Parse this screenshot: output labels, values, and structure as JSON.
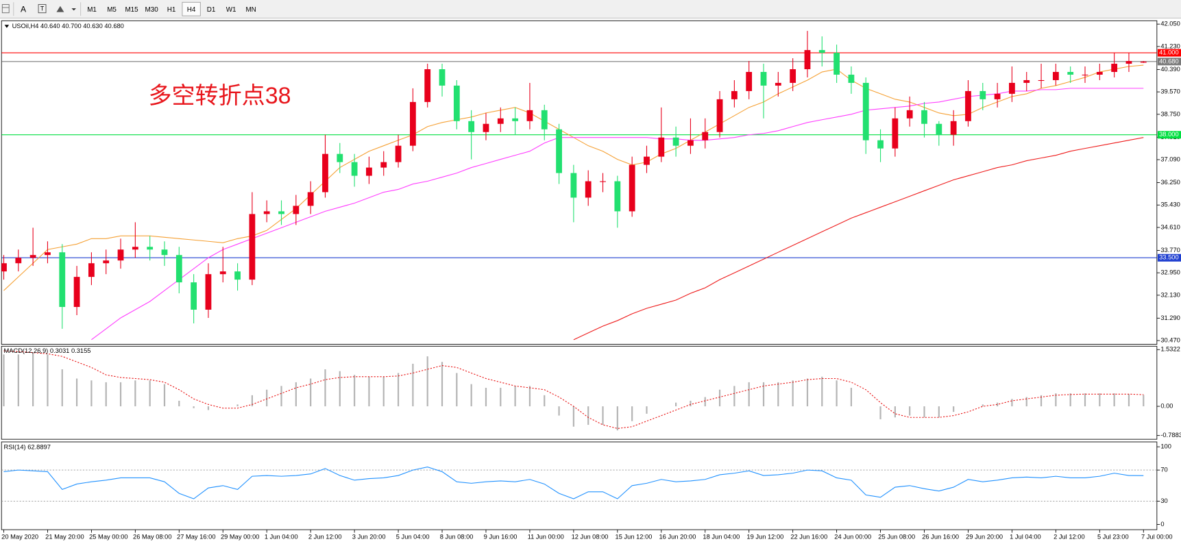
{
  "toolbar": {
    "font_button": "A",
    "timeframes": [
      "M1",
      "M5",
      "M15",
      "M30",
      "H1",
      "H4",
      "D1",
      "W1",
      "MN"
    ],
    "active_timeframe": 5
  },
  "chart_data": [
    {
      "type": "candlestick",
      "title": "USOil,H4  40.640 40.700 40.630 40.680",
      "annotation": "多空转折点38",
      "annotation_color": "#e8161c",
      "open": [
        33.0,
        33.3,
        33.5,
        33.6,
        33.7,
        31.7,
        32.8,
        33.3,
        33.4,
        33.8,
        33.9,
        33.8,
        33.6,
        32.6,
        31.6,
        32.9,
        33.0,
        32.7,
        35.1,
        35.2,
        35.1,
        35.4,
        35.9,
        37.3,
        37.0,
        36.5,
        36.8,
        37.0,
        37.6,
        39.2,
        40.4,
        39.8,
        38.5,
        38.1,
        38.4,
        38.6,
        38.5,
        38.9,
        38.2,
        36.6,
        35.7,
        36.3,
        36.3,
        35.2,
        36.9,
        37.2,
        37.9,
        37.6,
        37.8,
        38.1,
        39.3,
        39.6,
        40.3,
        39.8,
        39.9,
        40.4,
        41.1,
        41.0,
        40.2,
        39.9,
        37.8,
        37.5,
        38.6,
        38.9,
        38.4,
        38.0,
        38.5,
        39.6,
        39.3,
        39.5,
        39.9,
        40.0,
        40.0,
        40.3,
        40.2,
        40.2,
        40.3,
        40.6,
        40.64
      ],
      "high": [
        33.6,
        33.8,
        34.6,
        34.1,
        34.0,
        33.2,
        33.7,
        33.8,
        34.2,
        34.8,
        34.3,
        34.1,
        33.9,
        32.9,
        33.3,
        33.9,
        33.3,
        35.9,
        35.6,
        35.6,
        35.8,
        36.3,
        38.0,
        37.7,
        37.3,
        37.2,
        37.4,
        38.0,
        39.7,
        40.6,
        40.6,
        40.0,
        38.9,
        38.8,
        39.0,
        39.0,
        39.9,
        39.1,
        38.4,
        36.9,
        36.7,
        36.6,
        36.5,
        37.2,
        37.6,
        39.0,
        38.3,
        38.6,
        38.6,
        39.6,
        40.0,
        40.7,
        40.6,
        40.3,
        40.8,
        41.8,
        41.6,
        41.3,
        40.5,
        40.1,
        38.2,
        39.0,
        39.4,
        39.2,
        38.5,
        38.9,
        40.0,
        39.9,
        39.9,
        40.5,
        40.3,
        40.6,
        40.6,
        40.5,
        40.5,
        40.6,
        41.0,
        41.0,
        40.7
      ],
      "low": [
        32.7,
        33.0,
        33.2,
        33.3,
        30.9,
        31.4,
        32.5,
        32.9,
        33.1,
        33.5,
        33.4,
        33.2,
        32.2,
        31.1,
        31.3,
        32.6,
        32.3,
        32.5,
        34.8,
        34.7,
        34.7,
        35.1,
        35.7,
        36.6,
        36.1,
        36.2,
        36.5,
        36.8,
        37.4,
        39.0,
        39.4,
        38.2,
        37.1,
        37.8,
        38.1,
        38.0,
        38.2,
        37.8,
        36.2,
        34.8,
        35.4,
        35.9,
        34.6,
        35.0,
        36.6,
        37.0,
        37.2,
        37.3,
        37.5,
        37.9,
        39.0,
        39.3,
        38.6,
        39.4,
        39.6,
        40.1,
        40.5,
        39.9,
        39.5,
        37.3,
        37.0,
        37.2,
        38.3,
        37.9,
        37.6,
        37.6,
        38.3,
        38.9,
        39.0,
        39.2,
        39.6,
        39.7,
        39.8,
        39.9,
        39.9,
        40.0,
        40.1,
        40.3,
        40.63
      ],
      "close": [
        33.3,
        33.5,
        33.6,
        33.7,
        31.7,
        32.8,
        33.3,
        33.4,
        33.8,
        33.9,
        33.8,
        33.6,
        32.6,
        31.6,
        32.9,
        33.0,
        32.7,
        35.1,
        35.2,
        35.1,
        35.4,
        35.9,
        37.3,
        37.0,
        36.5,
        36.8,
        37.0,
        37.6,
        39.2,
        40.4,
        39.8,
        38.5,
        38.1,
        38.4,
        38.6,
        38.5,
        38.9,
        38.2,
        36.6,
        35.7,
        36.3,
        36.3,
        35.2,
        36.9,
        37.2,
        37.9,
        37.6,
        37.8,
        38.1,
        39.3,
        39.6,
        40.3,
        39.8,
        39.9,
        40.4,
        41.1,
        41.0,
        40.2,
        39.9,
        37.8,
        37.5,
        38.6,
        38.9,
        38.4,
        38.0,
        38.5,
        39.6,
        39.3,
        39.5,
        39.9,
        40.0,
        40.0,
        40.3,
        40.2,
        40.2,
        40.3,
        40.6,
        40.7,
        40.68
      ],
      "up_color": "#e8001c",
      "down_color": "#22e070",
      "lines": [
        {
          "color": "#f5a033",
          "values": [
            32.3,
            32.8,
            33.3,
            33.8,
            33.9,
            34.0,
            34.2,
            34.2,
            34.3,
            34.3,
            34.3,
            34.25,
            34.2,
            34.15,
            34.1,
            34.05,
            34.2,
            34.3,
            34.5,
            34.9,
            35.3,
            35.8,
            36.3,
            36.8,
            37.1,
            37.4,
            37.6,
            37.8,
            38.0,
            38.3,
            38.45,
            38.55,
            38.65,
            38.8,
            38.9,
            39.0,
            38.8,
            38.5,
            38.2,
            37.9,
            37.6,
            37.4,
            37.1,
            36.9,
            37.0,
            37.3,
            37.5,
            37.8,
            38.1,
            38.4,
            38.7,
            39.0,
            39.2,
            39.5,
            39.75,
            40.0,
            40.3,
            40.4,
            40.0,
            39.7,
            39.5,
            39.3,
            39.2,
            39.0,
            38.8,
            38.7,
            38.75,
            39.0,
            39.2,
            39.4,
            39.5,
            39.7,
            39.8,
            39.95,
            40.1,
            40.3,
            40.4,
            40.5,
            40.55
          ]
        },
        {
          "color": "#ff3cff",
          "values": [
            null,
            null,
            null,
            null,
            null,
            null,
            30.5,
            30.9,
            31.3,
            31.6,
            31.9,
            32.3,
            32.7,
            33.1,
            33.5,
            33.8,
            34.0,
            34.2,
            34.4,
            34.6,
            34.8,
            35.0,
            35.2,
            35.35,
            35.5,
            35.7,
            35.9,
            36.0,
            36.2,
            36.3,
            36.45,
            36.6,
            36.8,
            36.95,
            37.1,
            37.25,
            37.4,
            37.7,
            37.9,
            37.9,
            37.9,
            37.9,
            37.9,
            37.9,
            37.9,
            37.85,
            37.85,
            37.8,
            37.8,
            37.85,
            37.9,
            38.0,
            38.05,
            38.15,
            38.3,
            38.45,
            38.55,
            38.65,
            38.75,
            38.9,
            38.95,
            39.0,
            39.05,
            39.15,
            39.2,
            39.3,
            39.4,
            39.45,
            39.5,
            39.6,
            39.6,
            39.65,
            39.65,
            39.7,
            39.7,
            39.7,
            39.7,
            39.7,
            39.7
          ]
        },
        {
          "color": "#ee1a1a",
          "values": [
            null,
            null,
            null,
            null,
            null,
            null,
            null,
            null,
            null,
            null,
            null,
            null,
            null,
            null,
            null,
            null,
            null,
            null,
            null,
            null,
            null,
            null,
            null,
            null,
            null,
            null,
            null,
            null,
            null,
            null,
            null,
            null,
            null,
            null,
            null,
            null,
            null,
            null,
            null,
            30.5,
            30.75,
            31.0,
            31.2,
            31.45,
            31.65,
            31.8,
            31.95,
            32.2,
            32.4,
            32.7,
            32.95,
            33.2,
            33.45,
            33.7,
            33.95,
            34.2,
            34.45,
            34.7,
            34.95,
            35.15,
            35.35,
            35.55,
            35.75,
            35.95,
            36.15,
            36.35,
            36.5,
            36.65,
            36.8,
            36.9,
            37.05,
            37.15,
            37.25,
            37.4,
            37.5,
            37.6,
            37.7,
            37.8,
            37.9
          ]
        }
      ],
      "hlines": [
        {
          "value": 41,
          "label": "41.000",
          "color": "#ff0000"
        },
        {
          "value": 40.68,
          "label": "40.680",
          "color": "#7a7a7a"
        },
        {
          "value": 38,
          "label": "38.000",
          "color": "#00e040"
        },
        {
          "value": 33.5,
          "label": "33.500",
          "color": "#1f3fd0"
        }
      ],
      "ylim": [
        30.47,
        42.05
      ],
      "yticks": [
        {
          "value": 42.05,
          "label": "42.050"
        },
        {
          "value": 41.23,
          "label": "41.230"
        },
        {
          "value": 40.39,
          "label": "40.390"
        },
        {
          "value": 39.57,
          "label": "39.570"
        },
        {
          "value": 38.75,
          "label": "38.750"
        },
        {
          "value": 37.91,
          "label": "37.910"
        },
        {
          "value": 37.09,
          "label": "37.090"
        },
        {
          "value": 36.25,
          "label": "36.250"
        },
        {
          "value": 35.43,
          "label": "35.430"
        },
        {
          "value": 34.61,
          "label": "34.610"
        },
        {
          "value": 33.77,
          "label": "33.770"
        },
        {
          "value": 32.95,
          "label": "32.950"
        },
        {
          "value": 32.13,
          "label": "32.130"
        },
        {
          "value": 31.29,
          "label": "31.290"
        },
        {
          "value": 30.47,
          "label": "30.470"
        }
      ]
    },
    {
      "type": "macd",
      "title": "MACD(12,26,9) 0.3031 0.3155",
      "histogram": [
        1.4,
        1.4,
        1.45,
        1.4,
        1.0,
        0.75,
        0.7,
        0.65,
        0.65,
        0.7,
        0.7,
        0.6,
        0.15,
        -0.05,
        -0.1,
        0.0,
        0.05,
        0.3,
        0.45,
        0.55,
        0.65,
        0.75,
        1.0,
        0.95,
        0.85,
        0.8,
        0.8,
        0.9,
        1.15,
        1.35,
        1.2,
        0.9,
        0.6,
        0.5,
        0.5,
        0.55,
        0.55,
        0.3,
        -0.25,
        -0.55,
        -0.5,
        -0.5,
        -0.65,
        -0.4,
        -0.2,
        0.0,
        0.1,
        0.15,
        0.25,
        0.45,
        0.55,
        0.65,
        0.65,
        0.65,
        0.7,
        0.75,
        0.8,
        0.7,
        0.5,
        0.0,
        -0.35,
        -0.3,
        -0.25,
        -0.3,
        -0.3,
        -0.15,
        0.0,
        0.05,
        0.1,
        0.2,
        0.25,
        0.3,
        0.35,
        0.35,
        0.35,
        0.35,
        0.35,
        0.33,
        0.3031
      ],
      "signal": [
        1.5,
        1.48,
        1.45,
        1.42,
        1.35,
        1.2,
        1.05,
        0.85,
        0.78,
        0.75,
        0.72,
        0.65,
        0.45,
        0.2,
        0.05,
        -0.05,
        -0.05,
        0.05,
        0.2,
        0.35,
        0.5,
        0.6,
        0.72,
        0.78,
        0.8,
        0.8,
        0.8,
        0.82,
        0.9,
        1.0,
        1.1,
        1.05,
        0.9,
        0.75,
        0.65,
        0.55,
        0.5,
        0.45,
        0.25,
        0.0,
        -0.3,
        -0.5,
        -0.6,
        -0.55,
        -0.4,
        -0.25,
        -0.1,
        0.05,
        0.15,
        0.25,
        0.35,
        0.45,
        0.55,
        0.6,
        0.65,
        0.72,
        0.75,
        0.75,
        0.65,
        0.45,
        0.1,
        -0.2,
        -0.3,
        -0.3,
        -0.3,
        -0.25,
        -0.15,
        0.0,
        0.05,
        0.15,
        0.2,
        0.25,
        0.3,
        0.32,
        0.33,
        0.33,
        0.33,
        0.33,
        0.3155
      ],
      "histogram_color": "#b4b4b4",
      "signal_color": "#e81010",
      "ylim": [
        -0.7883,
        1.5322
      ],
      "yticks": [
        1.5322,
        {
          "value": 0,
          "label": "0.00"
        },
        -0.7883
      ]
    },
    {
      "type": "line",
      "title": "RSI(14) 62.8897",
      "values": [
        68,
        70,
        69,
        68,
        45,
        52,
        55,
        57,
        60,
        60,
        60,
        55,
        40,
        33,
        47,
        50,
        45,
        62,
        63,
        62,
        63,
        65,
        72,
        63,
        57,
        59,
        60,
        63,
        70,
        74,
        68,
        55,
        53,
        55,
        56,
        55,
        58,
        52,
        40,
        33,
        42,
        42,
        33,
        50,
        53,
        58,
        55,
        56,
        58,
        64,
        66,
        69,
        63,
        64,
        66,
        70,
        69,
        60,
        57,
        38,
        35,
        48,
        50,
        46,
        43,
        48,
        58,
        55,
        57,
        60,
        61,
        60,
        62,
        60,
        60,
        62,
        66,
        63,
        62.8897
      ],
      "color": "#1e90ff",
      "levels": [
        70,
        30
      ],
      "ylim": [
        0,
        100
      ],
      "yticks": [
        100,
        70,
        30,
        0
      ],
      "categories": [
        "20 May 2020",
        null,
        null,
        "21 May 20:00",
        null,
        null,
        "25 May 00:00",
        null,
        null,
        "26 May 08:00",
        null,
        null,
        "27 May 16:00",
        null,
        null,
        "29 May 00:00",
        null,
        null,
        "1 Jun 04:00",
        null,
        null,
        "2 Jun 12:00",
        null,
        null,
        "3 Jun 20:00",
        null,
        null,
        "5 Jun 04:00",
        null,
        null,
        "8 Jun 08:00",
        null,
        null,
        "9 Jun 16:00",
        null,
        null,
        "11 Jun 00:00",
        null,
        null,
        "12 Jun 08:00",
        null,
        null,
        "15 Jun 12:00",
        null,
        null,
        "16 Jun 20:00",
        null,
        null,
        "18 Jun 04:00",
        null,
        null,
        "19 Jun 12:00",
        null,
        null,
        "22 Jun 16:00",
        null,
        null,
        "24 Jun 00:00",
        null,
        null,
        "25 Jun 08:00",
        null,
        null,
        "26 Jun 16:00",
        null,
        null,
        "29 Jun 20:00",
        null,
        null,
        "1 Jul 04:00",
        null,
        null,
        "2 Jul 12:00",
        null,
        null,
        "5 Jul 23:00",
        null,
        null,
        "7 Jul 00:00"
      ]
    }
  ]
}
